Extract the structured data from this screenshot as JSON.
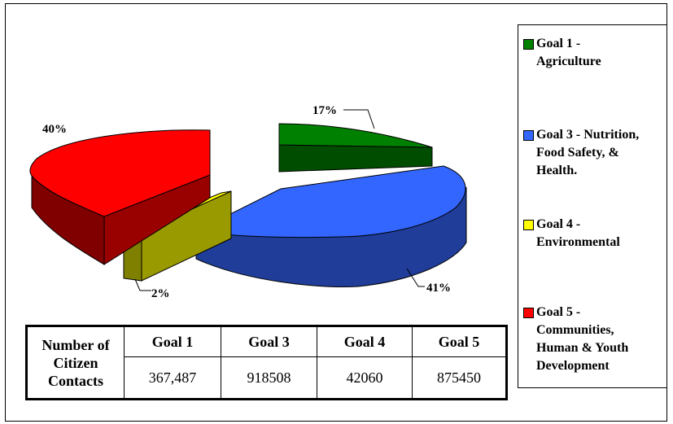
{
  "chart_data": {
    "type": "pie",
    "slices": [
      {
        "label": "Goal 1 - Agriculture",
        "value": 367487,
        "pct_label": "17%",
        "color": "#008000",
        "side_color": "#004d00"
      },
      {
        "label": "Goal 3 - Nutrition, Food Safety, & Health.",
        "value": 918508,
        "pct_label": "41%",
        "color": "#3366ff",
        "side_color": "#1f3d99"
      },
      {
        "label": "Goal 4 - Environmental",
        "value": 42060,
        "pct_label": "2%",
        "color": "#ffff00",
        "side_color": "#808000"
      },
      {
        "label": "Goal 5 - Communities, Human & Youth Development",
        "value": 875450,
        "pct_label": "40%",
        "color": "#ff0000",
        "side_color": "#800000"
      }
    ],
    "legend_placement": "right"
  },
  "legend": {
    "items": [
      {
        "text": "Goal 1 -\nAgriculture",
        "color": "#008000"
      },
      {
        "text": "Goal 3 - Nutrition,\nFood Safety, &\nHealth.",
        "color": "#3366ff"
      },
      {
        "text": "Goal 4 -\nEnvironmental",
        "color": "#ffff00"
      },
      {
        "text": "Goal 5 -\nCommunities,\nHuman & Youth\nDevelopment",
        "color": "#ff0000"
      }
    ]
  },
  "table": {
    "row_label": "Number of Citizen Contacts",
    "headers": [
      "Goal 1",
      "Goal 3",
      "Goal 4",
      "Goal 5"
    ],
    "values": [
      "367,487",
      "918508",
      "42060",
      "875450"
    ]
  }
}
